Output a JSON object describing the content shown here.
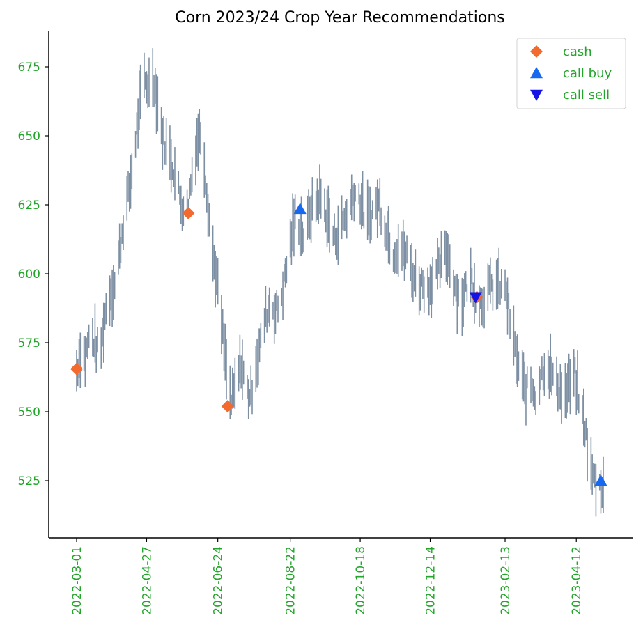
{
  "chart_data": {
    "type": "line",
    "title": "Corn 2023/24 Crop Year Recommendations",
    "xlabel": "",
    "ylabel": "",
    "x_range": [
      "2022-03-01",
      "2023-05-04"
    ],
    "ylim": [
      508,
      685
    ],
    "y_ticks": [
      525,
      550,
      575,
      600,
      625,
      650,
      675
    ],
    "x_ticks": [
      "2022-03-01",
      "2022-04-27",
      "2022-06-24",
      "2022-08-22",
      "2022-10-18",
      "2022-12-14",
      "2023-02-13",
      "2023-04-12"
    ],
    "grid": false,
    "legend_position": "top-right",
    "colors": {
      "title": "#1a73e8",
      "ticks": "#22a52a",
      "price_bars": "#7d8fa3",
      "cash": "#f26a2e",
      "call_buy": "#1668ef",
      "call_sell": "#1414e6",
      "axis": "#000000"
    },
    "price_series": {
      "name": "",
      "style": "daily high-low range bars",
      "points": [
        [
          "2022-03-01",
          565
        ],
        [
          "2022-03-04",
          572
        ],
        [
          "2022-03-08",
          570
        ],
        [
          "2022-03-12",
          578
        ],
        [
          "2022-03-16",
          575
        ],
        [
          "2022-03-20",
          570
        ],
        [
          "2022-03-24",
          585
        ],
        [
          "2022-03-28",
          593
        ],
        [
          "2022-04-01",
          596
        ],
        [
          "2022-04-05",
          608
        ],
        [
          "2022-04-09",
          622
        ],
        [
          "2022-04-13",
          630
        ],
        [
          "2022-04-17",
          645
        ],
        [
          "2022-04-21",
          660
        ],
        [
          "2022-04-25",
          670
        ],
        [
          "2022-04-29",
          668
        ],
        [
          "2022-05-02",
          673
        ],
        [
          "2022-05-06",
          662
        ],
        [
          "2022-05-10",
          650
        ],
        [
          "2022-05-14",
          645
        ],
        [
          "2022-05-18",
          640
        ],
        [
          "2022-05-22",
          632
        ],
        [
          "2022-05-26",
          625
        ],
        [
          "2022-05-30",
          624
        ],
        [
          "2022-06-03",
          636
        ],
        [
          "2022-06-07",
          648
        ],
        [
          "2022-06-11",
          652
        ],
        [
          "2022-06-15",
          630
        ],
        [
          "2022-06-19",
          610
        ],
        [
          "2022-06-23",
          598
        ],
        [
          "2022-06-27",
          582
        ],
        [
          "2022-07-01",
          565
        ],
        [
          "2022-07-05",
          553
        ],
        [
          "2022-07-09",
          560
        ],
        [
          "2022-07-13",
          568
        ],
        [
          "2022-07-17",
          558
        ],
        [
          "2022-07-21",
          556
        ],
        [
          "2022-07-25",
          568
        ],
        [
          "2022-07-29",
          575
        ],
        [
          "2022-08-02",
          585
        ],
        [
          "2022-08-06",
          590
        ],
        [
          "2022-08-10",
          586
        ],
        [
          "2022-08-14",
          590
        ],
        [
          "2022-08-18",
          600
        ],
        [
          "2022-08-22",
          611
        ],
        [
          "2022-08-26",
          620
        ],
        [
          "2022-08-30",
          618
        ],
        [
          "2022-09-03",
          612
        ],
        [
          "2022-09-07",
          622
        ],
        [
          "2022-09-11",
          625
        ],
        [
          "2022-09-15",
          628
        ],
        [
          "2022-09-19",
          624
        ],
        [
          "2022-09-23",
          618
        ],
        [
          "2022-09-27",
          613
        ],
        [
          "2022-10-01",
          616
        ],
        [
          "2022-10-05",
          620
        ],
        [
          "2022-10-09",
          624
        ],
        [
          "2022-10-13",
          630
        ],
        [
          "2022-10-17",
          628
        ],
        [
          "2022-10-21",
          622
        ],
        [
          "2022-10-25",
          620
        ],
        [
          "2022-10-29",
          623
        ],
        [
          "2022-11-02",
          626
        ],
        [
          "2022-11-06",
          620
        ],
        [
          "2022-11-10",
          614
        ],
        [
          "2022-11-14",
          608
        ],
        [
          "2022-11-18",
          610
        ],
        [
          "2022-11-22",
          608
        ],
        [
          "2022-11-26",
          606
        ],
        [
          "2022-11-30",
          600
        ],
        [
          "2022-12-04",
          596
        ],
        [
          "2022-12-08",
          597
        ],
        [
          "2022-12-12",
          595
        ],
        [
          "2022-12-16",
          598
        ],
        [
          "2022-12-20",
          600
        ],
        [
          "2022-12-24",
          605
        ],
        [
          "2022-12-28",
          608
        ],
        [
          "2023-01-01",
          600
        ],
        [
          "2023-01-05",
          593
        ],
        [
          "2023-01-09",
          590
        ],
        [
          "2023-01-13",
          596
        ],
        [
          "2023-01-17",
          598
        ],
        [
          "2023-01-21",
          591
        ],
        [
          "2023-01-25",
          590
        ],
        [
          "2023-01-29",
          593
        ],
        [
          "2023-02-02",
          595
        ],
        [
          "2023-02-06",
          596
        ],
        [
          "2023-02-10",
          595
        ],
        [
          "2023-02-14",
          593
        ],
        [
          "2023-02-18",
          580
        ],
        [
          "2023-02-22",
          570
        ],
        [
          "2023-02-26",
          562
        ],
        [
          "2023-03-02",
          558
        ],
        [
          "2023-03-06",
          560
        ],
        [
          "2023-03-10",
          556
        ],
        [
          "2023-03-14",
          563
        ],
        [
          "2023-03-18",
          568
        ],
        [
          "2023-03-22",
          565
        ],
        [
          "2023-03-26",
          560
        ],
        [
          "2023-03-30",
          558
        ],
        [
          "2023-04-03",
          556
        ],
        [
          "2023-04-07",
          560
        ],
        [
          "2023-04-11",
          563
        ],
        [
          "2023-04-15",
          552
        ],
        [
          "2023-04-19",
          545
        ],
        [
          "2023-04-23",
          530
        ],
        [
          "2023-04-27",
          525
        ],
        [
          "2023-05-01",
          523
        ],
        [
          "2023-05-04",
          524
        ]
      ]
    },
    "markers": [
      {
        "legend": "cash",
        "points": [
          [
            "2022-03-01",
            565.5
          ],
          [
            "2022-05-31",
            622
          ],
          [
            "2022-07-02",
            552
          ],
          [
            "2023-01-21",
            591.5
          ]
        ]
      },
      {
        "legend": "call buy",
        "points": [
          [
            "2022-08-30",
            623.5
          ],
          [
            "2023-05-02",
            525
          ]
        ]
      },
      {
        "legend": "call sell",
        "points": [
          [
            "2023-01-20",
            591.5
          ]
        ]
      }
    ],
    "legend": [
      {
        "label": "cash",
        "marker": "diamond"
      },
      {
        "label": "call buy",
        "marker": "triangle-up"
      },
      {
        "label": "call sell",
        "marker": "triangle-down"
      }
    ]
  }
}
